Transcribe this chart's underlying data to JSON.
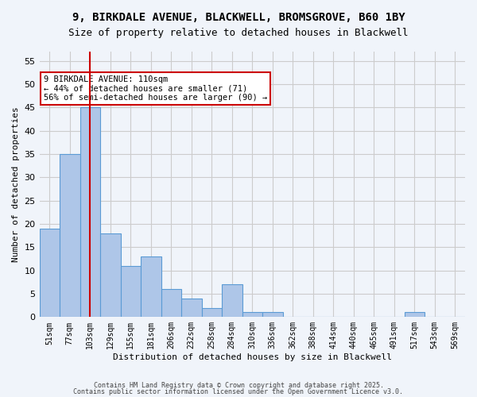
{
  "title_line1": "9, BIRKDALE AVENUE, BLACKWELL, BROMSGROVE, B60 1BY",
  "title_line2": "Size of property relative to detached houses in Blackwell",
  "xlabel": "Distribution of detached houses by size in Blackwell",
  "ylabel": "Number of detached properties",
  "categories": [
    "51sqm",
    "77sqm",
    "103sqm",
    "129sqm",
    "155sqm",
    "181sqm",
    "206sqm",
    "232sqm",
    "258sqm",
    "284sqm",
    "310sqm",
    "336sqm",
    "362sqm",
    "388sqm",
    "414sqm",
    "440sqm",
    "465sqm",
    "491sqm",
    "517sqm",
    "543sqm",
    "569sqm"
  ],
  "values": [
    19,
    35,
    45,
    18,
    11,
    13,
    6,
    4,
    2,
    7,
    1,
    1,
    0,
    0,
    0,
    0,
    0,
    0,
    1,
    0,
    0
  ],
  "bar_color": "#aec6e8",
  "bar_edge_color": "#5b9bd5",
  "red_line_index": 2,
  "annotation_text": "9 BIRKDALE AVENUE: 110sqm\n← 44% of detached houses are smaller (71)\n56% of semi-detached houses are larger (90) →",
  "annotation_box_color": "#ffffff",
  "annotation_box_edge": "#cc0000",
  "grid_color": "#cccccc",
  "background_color": "#f0f4fa",
  "ylim": [
    0,
    57
  ],
  "yticks": [
    0,
    5,
    10,
    15,
    20,
    25,
    30,
    35,
    40,
    45,
    50,
    55
  ],
  "footer_line1": "Contains HM Land Registry data © Crown copyright and database right 2025.",
  "footer_line2": "Contains public sector information licensed under the Open Government Licence v3.0."
}
